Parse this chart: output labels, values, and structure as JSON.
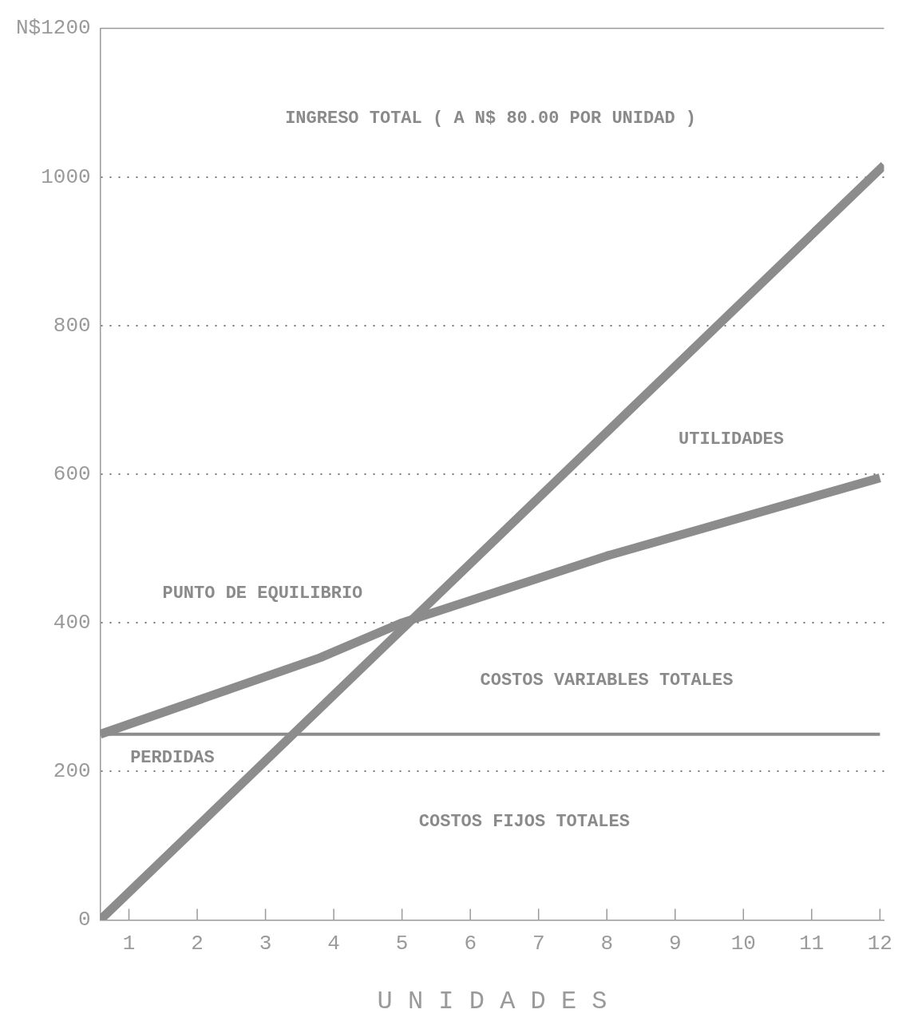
{
  "chart_data": {
    "type": "line",
    "xlabel": "U N I D A D E S",
    "xlim": [
      0.58,
      12.06
    ],
    "xticks": [
      1,
      2,
      3,
      4,
      5,
      6,
      7,
      8,
      9,
      10,
      11,
      12
    ],
    "ylim": [
      0,
      1200
    ],
    "yticks": [
      0,
      200,
      400,
      600,
      800,
      {
        "value": 1000,
        "label": "1000"
      },
      {
        "value": 1200,
        "label": "N$1200"
      }
    ],
    "grid": "y",
    "line_style": "solid",
    "marker": "none",
    "legend": false,
    "series": [
      {
        "x": [
          0.58,
          12.06
        ],
        "values": [
          0,
          1016
        ],
        "color": "#8c8c8c"
      },
      {
        "x": [
          0.58,
          3.8,
          5,
          8,
          12
        ],
        "values": [
          250,
          353,
          400,
          490,
          595
        ],
        "color": "#8c8c8c"
      },
      {
        "x": [
          0.58,
          12
        ],
        "values": [
          250,
          250
        ],
        "color": "#8c8c8c"
      }
    ],
    "annotations": [
      "INGRESO TOTAL ( A N$ 80.00 POR UNIDAD )",
      "UTILIDADES",
      "PUNTO DE EQUILIBRIO",
      "COSTOS VARIABLES TOTALES",
      "PERDIDAS",
      "COSTOS FIJOS TOTALES"
    ]
  }
}
